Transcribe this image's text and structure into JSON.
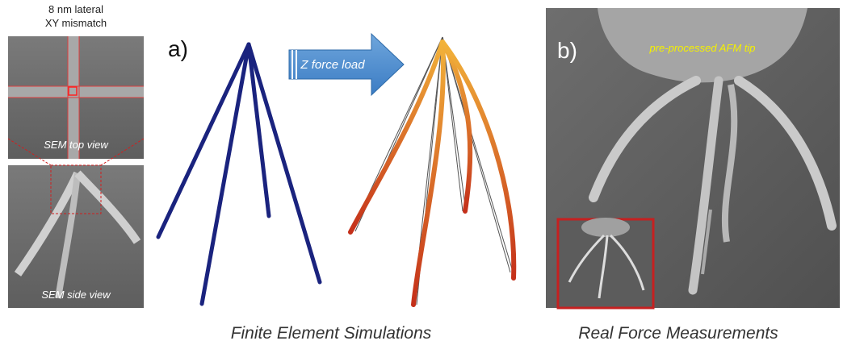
{
  "sem_panel": {
    "header_line1": "8 nm lateral",
    "header_line2": "XY mismatch",
    "top_label": "SEM top view",
    "side_label": "SEM side view"
  },
  "panel_a": {
    "label": "a)",
    "arrow_label": "Z force load",
    "caption": "Finite Element Simulations"
  },
  "panel_b": {
    "label": "b)",
    "tip_label": "pre-processed AFM tip",
    "caption": "Real Force Measurements"
  }
}
